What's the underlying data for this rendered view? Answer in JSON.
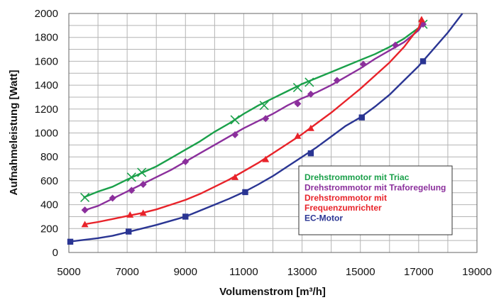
{
  "chart_data": {
    "type": "line",
    "title": "",
    "xlabel": "Volumenstrom [m³/h]",
    "ylabel": "Aufnahmeleistung [Watt]",
    "xlim": [
      5000,
      19000
    ],
    "ylim": [
      0,
      2000
    ],
    "xticks": [
      5000,
      7000,
      9000,
      11000,
      13000,
      15000,
      17000,
      19000
    ],
    "yticks": [
      0,
      200,
      400,
      600,
      800,
      1000,
      1200,
      1400,
      1600,
      1800,
      2000
    ],
    "grid": true,
    "legend_position": "lower-right",
    "series": [
      {
        "name": "Drehstrommotor mit Triac",
        "color": "#1aa04a",
        "marker": "x",
        "x": [
          5500,
          5700,
          6000,
          6500,
          7000,
          7500,
          8000,
          8500,
          9000,
          9500,
          10000,
          10500,
          11000,
          11500,
          12000,
          12500,
          13000,
          13500,
          14000,
          14500,
          15000,
          15500,
          16000,
          16500,
          17000,
          17200
        ],
        "y": [
          460,
          480,
          510,
          550,
          610,
          665,
          720,
          790,
          860,
          930,
          1010,
          1080,
          1160,
          1230,
          1290,
          1350,
          1410,
          1460,
          1510,
          1560,
          1610,
          1660,
          1720,
          1790,
          1880,
          1930
        ],
        "markers": [
          [
            5550,
            460
          ],
          [
            7150,
            630
          ],
          [
            7500,
            670
          ],
          [
            10700,
            1110
          ],
          [
            11700,
            1230
          ],
          [
            12850,
            1380
          ],
          [
            13250,
            1425
          ],
          [
            17150,
            1910
          ]
        ]
      },
      {
        "name": "Drehstrommotor mit Traforegelung",
        "color": "#8b2f9c",
        "marker": "diamond",
        "x": [
          5500,
          6000,
          6500,
          7000,
          7500,
          8000,
          8500,
          9000,
          9500,
          10000,
          10500,
          11000,
          11500,
          12000,
          12500,
          13000,
          13500,
          14000,
          14500,
          15000,
          15500,
          16000,
          16500,
          17000,
          17100
        ],
        "y": [
          350,
          390,
          450,
          510,
          570,
          630,
          690,
          760,
          830,
          900,
          970,
          1040,
          1100,
          1160,
          1230,
          1290,
          1340,
          1400,
          1470,
          1540,
          1620,
          1690,
          1760,
          1860,
          1900
        ],
        "markers": [
          [
            5550,
            355
          ],
          [
            6500,
            455
          ],
          [
            7150,
            520
          ],
          [
            7550,
            570
          ],
          [
            9000,
            760
          ],
          [
            10700,
            985
          ],
          [
            11750,
            1120
          ],
          [
            12850,
            1245
          ],
          [
            13300,
            1325
          ],
          [
            14200,
            1440
          ],
          [
            15100,
            1575
          ],
          [
            16200,
            1735
          ],
          [
            17150,
            1910
          ]
        ]
      },
      {
        "name": "Drehstrommotor mit Frequenzumrichter",
        "color": "#e8232a",
        "marker": "triangle",
        "x": [
          5500,
          6000,
          6500,
          7000,
          7500,
          8000,
          8500,
          9000,
          9500,
          10000,
          10500,
          11000,
          11500,
          12000,
          12500,
          13000,
          13500,
          14000,
          14500,
          15000,
          15500,
          16000,
          16500,
          17000,
          17100
        ],
        "y": [
          235,
          255,
          280,
          305,
          330,
          360,
          400,
          440,
          490,
          550,
          610,
          680,
          750,
          830,
          910,
          990,
          1080,
          1170,
          1270,
          1370,
          1480,
          1590,
          1720,
          1880,
          1950
        ],
        "markers": [
          [
            5550,
            235
          ],
          [
            7100,
            315
          ],
          [
            7550,
            330
          ],
          [
            10700,
            630
          ],
          [
            11750,
            780
          ],
          [
            12850,
            975
          ],
          [
            13300,
            1040
          ],
          [
            17100,
            1950
          ]
        ]
      },
      {
        "name": "EC-Motor",
        "color": "#2a3593",
        "marker": "square",
        "x": [
          5000,
          5500,
          6000,
          6500,
          7000,
          7500,
          8000,
          8500,
          9000,
          9500,
          10000,
          10500,
          11000,
          11500,
          12000,
          12500,
          13000,
          13500,
          14000,
          14500,
          15000,
          15500,
          16000,
          16500,
          17000,
          17500,
          18000,
          18500
        ],
        "y": [
          90,
          105,
          120,
          140,
          170,
          200,
          230,
          265,
          300,
          350,
          400,
          450,
          505,
          570,
          640,
          720,
          800,
          880,
          970,
          1060,
          1130,
          1220,
          1320,
          1440,
          1560,
          1700,
          1840,
          2000
        ],
        "markers": [
          [
            5050,
            90
          ],
          [
            7050,
            175
          ],
          [
            9000,
            300
          ],
          [
            11050,
            505
          ],
          [
            13300,
            830
          ],
          [
            15050,
            1130
          ],
          [
            17150,
            1600
          ]
        ]
      }
    ]
  }
}
